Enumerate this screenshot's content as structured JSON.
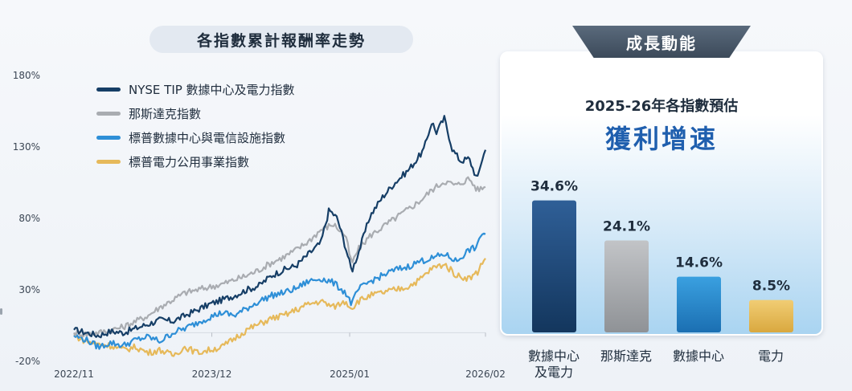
{
  "left_panel": {
    "title": "各指數累計報酬率走勢"
  },
  "right_panel": {
    "tab_title": "成長動能",
    "subtitle": "2025-26年各指數預估",
    "headline": "獲利增速"
  },
  "colors": {
    "nyse_tip": "#163e66",
    "nasdaq": "#a9acb1",
    "sp_datacenter": "#2e8fd7",
    "sp_utilities": "#e6b95a",
    "headline": "#1f5fae"
  },
  "chart_data": [
    {
      "type": "line",
      "y_ticks": [
        "180%",
        "130%",
        "80%",
        "30%",
        "-20%"
      ],
      "y_tick_values": [
        180,
        130,
        80,
        30,
        -20
      ],
      "ylim": [
        -20,
        180
      ],
      "x_ticks": [
        "2022/11",
        "2023/12",
        "2025/01",
        "2026/02"
      ],
      "x_tick_positions": [
        0,
        0.335,
        0.67,
        1.0
      ],
      "grid": false,
      "legend_position": "top-left",
      "series": [
        {
          "name": "NYSE TIP 數據中心及電力指數",
          "color_key": "nyse_tip",
          "points": [
            [
              0,
              2
            ],
            [
              0.03,
              0
            ],
            [
              0.06,
              -2
            ],
            [
              0.09,
              1
            ],
            [
              0.12,
              0
            ],
            [
              0.15,
              3
            ],
            [
              0.18,
              6
            ],
            [
              0.21,
              9
            ],
            [
              0.24,
              8
            ],
            [
              0.27,
              12
            ],
            [
              0.3,
              16
            ],
            [
              0.33,
              20
            ],
            [
              0.36,
              23
            ],
            [
              0.39,
              26
            ],
            [
              0.42,
              30
            ],
            [
              0.45,
              33
            ],
            [
              0.48,
              40
            ],
            [
              0.51,
              44
            ],
            [
              0.54,
              47
            ],
            [
              0.57,
              55
            ],
            [
              0.6,
              63
            ],
            [
              0.62,
              86
            ],
            [
              0.64,
              80
            ],
            [
              0.66,
              60
            ],
            [
              0.675,
              43
            ],
            [
              0.69,
              55
            ],
            [
              0.72,
              82
            ],
            [
              0.75,
              95
            ],
            [
              0.78,
              105
            ],
            [
              0.81,
              113
            ],
            [
              0.83,
              120
            ],
            [
              0.85,
              128
            ],
            [
              0.87,
              148
            ],
            [
              0.88,
              140
            ],
            [
              0.9,
              150
            ],
            [
              0.92,
              128
            ],
            [
              0.94,
              120
            ],
            [
              0.96,
              122
            ],
            [
              0.98,
              107
            ],
            [
              0.99,
              120
            ],
            [
              1.0,
              128
            ]
          ]
        },
        {
          "name": "那斯達克指數",
          "color_key": "nasdaq",
          "points": [
            [
              0,
              0
            ],
            [
              0.03,
              -1
            ],
            [
              0.06,
              0
            ],
            [
              0.09,
              2
            ],
            [
              0.12,
              4
            ],
            [
              0.15,
              8
            ],
            [
              0.18,
              12
            ],
            [
              0.21,
              18
            ],
            [
              0.24,
              23
            ],
            [
              0.27,
              28
            ],
            [
              0.3,
              30
            ],
            [
              0.33,
              32
            ],
            [
              0.36,
              34
            ],
            [
              0.39,
              37
            ],
            [
              0.42,
              40
            ],
            [
              0.45,
              44
            ],
            [
              0.48,
              49
            ],
            [
              0.51,
              53
            ],
            [
              0.54,
              58
            ],
            [
              0.57,
              64
            ],
            [
              0.6,
              72
            ],
            [
              0.63,
              76
            ],
            [
              0.66,
              68
            ],
            [
              0.675,
              48
            ],
            [
              0.69,
              58
            ],
            [
              0.72,
              68
            ],
            [
              0.75,
              74
            ],
            [
              0.78,
              80
            ],
            [
              0.81,
              86
            ],
            [
              0.84,
              92
            ],
            [
              0.87,
              100
            ],
            [
              0.9,
              106
            ],
            [
              0.93,
              103
            ],
            [
              0.96,
              108
            ],
            [
              0.98,
              100
            ],
            [
              1.0,
              102
            ]
          ]
        },
        {
          "name": "標普數據中心與電信設施指數",
          "color_key": "sp_datacenter",
          "points": [
            [
              0,
              -2
            ],
            [
              0.03,
              -5
            ],
            [
              0.06,
              -10
            ],
            [
              0.09,
              -7
            ],
            [
              0.12,
              -9
            ],
            [
              0.15,
              -5
            ],
            [
              0.18,
              -3
            ],
            [
              0.21,
              -6
            ],
            [
              0.24,
              0
            ],
            [
              0.27,
              3
            ],
            [
              0.3,
              7
            ],
            [
              0.33,
              11
            ],
            [
              0.36,
              14
            ],
            [
              0.39,
              12
            ],
            [
              0.42,
              17
            ],
            [
              0.45,
              22
            ],
            [
              0.48,
              26
            ],
            [
              0.51,
              28
            ],
            [
              0.54,
              31
            ],
            [
              0.57,
              36
            ],
            [
              0.6,
              38
            ],
            [
              0.63,
              35
            ],
            [
              0.66,
              28
            ],
            [
              0.675,
              20
            ],
            [
              0.69,
              30
            ],
            [
              0.72,
              36
            ],
            [
              0.75,
              40
            ],
            [
              0.78,
              44
            ],
            [
              0.81,
              46
            ],
            [
              0.84,
              50
            ],
            [
              0.87,
              52
            ],
            [
              0.9,
              55
            ],
            [
              0.93,
              50
            ],
            [
              0.96,
              58
            ],
            [
              0.98,
              60
            ],
            [
              0.99,
              70
            ],
            [
              1.0,
              69
            ]
          ]
        },
        {
          "name": "標普電力公用事業指數",
          "color_key": "sp_utilities",
          "points": [
            [
              0,
              -2
            ],
            [
              0.03,
              -6
            ],
            [
              0.06,
              -8
            ],
            [
              0.09,
              -9
            ],
            [
              0.12,
              -12
            ],
            [
              0.15,
              -10
            ],
            [
              0.18,
              -14
            ],
            [
              0.21,
              -12
            ],
            [
              0.24,
              -16
            ],
            [
              0.27,
              -10
            ],
            [
              0.3,
              -14
            ],
            [
              0.33,
              -12
            ],
            [
              0.36,
              -10
            ],
            [
              0.39,
              -4
            ],
            [
              0.42,
              2
            ],
            [
              0.45,
              6
            ],
            [
              0.48,
              10
            ],
            [
              0.51,
              12
            ],
            [
              0.54,
              16
            ],
            [
              0.57,
              20
            ],
            [
              0.6,
              22
            ],
            [
              0.63,
              18
            ],
            [
              0.66,
              22
            ],
            [
              0.675,
              17
            ],
            [
              0.69,
              22
            ],
            [
              0.72,
              26
            ],
            [
              0.75,
              28
            ],
            [
              0.78,
              30
            ],
            [
              0.81,
              32
            ],
            [
              0.84,
              37
            ],
            [
              0.87,
              45
            ],
            [
              0.9,
              48
            ],
            [
              0.93,
              40
            ],
            [
              0.96,
              38
            ],
            [
              0.98,
              42
            ],
            [
              0.99,
              48
            ],
            [
              1.0,
              52
            ]
          ]
        }
      ]
    },
    {
      "type": "bar",
      "title": "2025-26年各指數預估",
      "categories": [
        "數據中心\n及電力",
        "那斯達克",
        "數據中心",
        "電力"
      ],
      "values": [
        34.6,
        24.1,
        14.6,
        8.5
      ],
      "value_labels": [
        "34.6%",
        "24.1%",
        "14.6%",
        "8.5%"
      ],
      "ylim": [
        0,
        40
      ]
    }
  ]
}
